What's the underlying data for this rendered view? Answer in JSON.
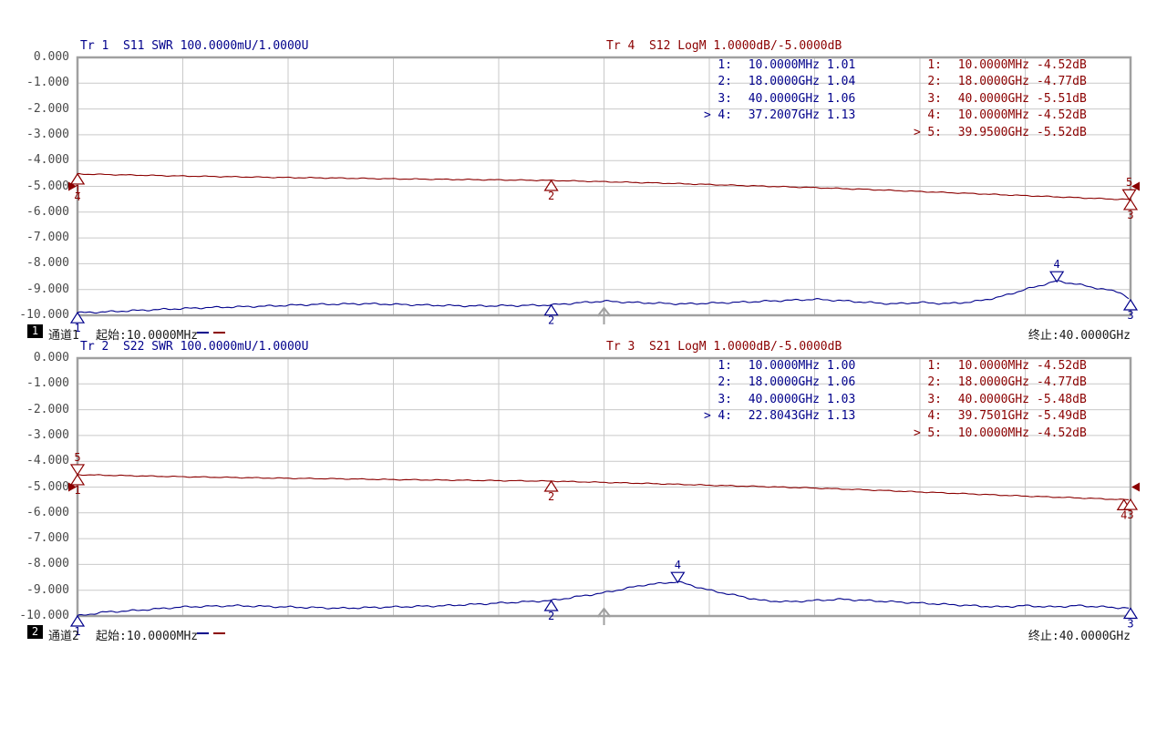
{
  "colors": {
    "trace_blue": "#00008b",
    "trace_red": "#8b0000",
    "grid_line": "#c9c9c9",
    "grid_border": "#a0a0a0",
    "tick_text": "#4a4a4a",
    "label_text": "#1a1a1a",
    "channel_box_bg": "#000000",
    "channel_box_fg": "#ffffff",
    "sweep_arrow": "#a0a0a0"
  },
  "axis": {
    "y_tick_labels": [
      "0.000",
      "-1.000",
      "-2.000",
      "-3.000",
      "-4.000",
      "-5.000",
      "-6.000",
      "-7.000",
      "-8.000",
      "-9.000",
      "-10.000"
    ],
    "x_divisions": 10,
    "y_divisions": 10
  },
  "channels": [
    {
      "channel_number": "1",
      "channel_name": "通道1",
      "start_label": "起始:10.0000MHz",
      "stop_label": "终止:40.0000GHz",
      "swr_header": "Tr 1  S11 SWR 100.0000mU/1.0000U",
      "logm_header": "Tr 4  S12 LogM 1.0000dB/-5.0000dB",
      "swr_marker_table": [
        {
          "active": "",
          "index": "1:",
          "stimulus": "10.0000MHz",
          "value": "1.01"
        },
        {
          "active": "",
          "index": "2:",
          "stimulus": "18.0000GHz",
          "value": "1.04"
        },
        {
          "active": "",
          "index": "3:",
          "stimulus": "40.0000GHz",
          "value": "1.06"
        },
        {
          "active": ">",
          "index": "4:",
          "stimulus": "37.2007GHz",
          "value": "1.13"
        }
      ],
      "logm_marker_table": [
        {
          "active": "",
          "index": "1:",
          "stimulus": "10.0000MHz",
          "value": "-4.52dB"
        },
        {
          "active": "",
          "index": "2:",
          "stimulus": "18.0000GHz",
          "value": "-4.77dB"
        },
        {
          "active": "",
          "index": "3:",
          "stimulus": "40.0000GHz",
          "value": "-5.51dB"
        },
        {
          "active": "",
          "index": "4:",
          "stimulus": "10.0000MHz",
          "value": "-4.52dB"
        },
        {
          "active": ">",
          "index": "5:",
          "stimulus": "39.9500GHz",
          "value": "-5.52dB"
        }
      ]
    },
    {
      "channel_number": "2",
      "channel_name": "通道2",
      "start_label": "起始:10.0000MHz",
      "stop_label": "终止:40.0000GHz",
      "swr_header": "Tr 2  S22 SWR 100.0000mU/1.0000U",
      "logm_header": "Tr 3  S21 LogM 1.0000dB/-5.0000dB",
      "swr_marker_table": [
        {
          "active": "",
          "index": "1:",
          "stimulus": "10.0000MHz",
          "value": "1.00"
        },
        {
          "active": "",
          "index": "2:",
          "stimulus": "18.0000GHz",
          "value": "1.06"
        },
        {
          "active": "",
          "index": "3:",
          "stimulus": "40.0000GHz",
          "value": "1.03"
        },
        {
          "active": ">",
          "index": "4:",
          "stimulus": "22.8043GHz",
          "value": "1.13"
        }
      ],
      "logm_marker_table": [
        {
          "active": "",
          "index": "1:",
          "stimulus": "10.0000MHz",
          "value": "-4.52dB"
        },
        {
          "active": "",
          "index": "2:",
          "stimulus": "18.0000GHz",
          "value": "-4.77dB"
        },
        {
          "active": "",
          "index": "3:",
          "stimulus": "40.0000GHz",
          "value": "-5.48dB"
        },
        {
          "active": "",
          "index": "4:",
          "stimulus": "39.7501GHz",
          "value": "-5.49dB"
        },
        {
          "active": ">",
          "index": "5:",
          "stimulus": "10.0000MHz",
          "value": "-4.52dB"
        }
      ]
    }
  ],
  "chart_data": [
    {
      "type": "line",
      "title": "通道1",
      "x_range_ghz": [
        0.01,
        40
      ],
      "x_start_label": "起始:10.0000MHz",
      "x_stop_label": "终止:40.0000GHz",
      "y_axis_db": {
        "min": -10,
        "max": 0,
        "step": 1
      },
      "grid": true,
      "sweep_arrow_frac": 0.5,
      "series": [
        {
          "name": "Tr 1 S11 SWR",
          "format": "SWR",
          "scale_per_div": "100.0000mU",
          "ref_value": "1.0000U",
          "color_key": "trace_blue",
          "anchors_ghz_swr": [
            [
              0.01,
              1.01
            ],
            [
              1,
              1.013
            ],
            [
              3,
              1.022
            ],
            [
              5,
              1.03
            ],
            [
              7,
              1.035
            ],
            [
              9,
              1.042
            ],
            [
              11,
              1.045
            ],
            [
              13,
              1.04
            ],
            [
              15,
              1.036
            ],
            [
              17,
              1.038
            ],
            [
              18,
              1.04
            ],
            [
              19,
              1.048
            ],
            [
              20,
              1.055
            ],
            [
              21,
              1.05
            ],
            [
              23,
              1.044
            ],
            [
              25,
              1.05
            ],
            [
              27,
              1.058
            ],
            [
              28,
              1.062
            ],
            [
              29,
              1.057
            ],
            [
              30,
              1.05
            ],
            [
              31,
              1.044
            ],
            [
              32,
              1.05
            ],
            [
              33,
              1.045
            ],
            [
              34,
              1.052
            ],
            [
              35,
              1.07
            ],
            [
              36,
              1.1
            ],
            [
              37.2,
              1.133
            ],
            [
              38,
              1.12
            ],
            [
              39,
              1.1
            ],
            [
              39.6,
              1.09
            ],
            [
              40,
              1.06
            ]
          ],
          "markers": [
            {
              "label": "1",
              "ghz": 0.01,
              "swr": 1.01,
              "dir": "up"
            },
            {
              "label": "2",
              "ghz": 18,
              "swr": 1.04,
              "dir": "up"
            },
            {
              "label": "3",
              "ghz": 40,
              "swr": 1.06,
              "dir": "up"
            },
            {
              "label": "4",
              "ghz": 37.2007,
              "swr": 1.13,
              "dir": "down"
            }
          ],
          "ref_arrows": false
        },
        {
          "name": "Tr 4 S12 LogM",
          "format": "LogM",
          "scale_per_div": "1.0000dB",
          "ref_value": "-5.0000dB",
          "color_key": "trace_red",
          "anchors_ghz_db": [
            [
              0.01,
              -4.52
            ],
            [
              2,
              -4.56
            ],
            [
              4,
              -4.6
            ],
            [
              6,
              -4.63
            ],
            [
              8,
              -4.66
            ],
            [
              10,
              -4.68
            ],
            [
              12,
              -4.71
            ],
            [
              14,
              -4.73
            ],
            [
              16,
              -4.75
            ],
            [
              18,
              -4.77
            ],
            [
              20,
              -4.82
            ],
            [
              22,
              -4.87
            ],
            [
              24,
              -4.93
            ],
            [
              26,
              -4.99
            ],
            [
              28,
              -5.05
            ],
            [
              30,
              -5.12
            ],
            [
              32,
              -5.2
            ],
            [
              34,
              -5.28
            ],
            [
              36,
              -5.36
            ],
            [
              38,
              -5.44
            ],
            [
              39.5,
              -5.5
            ],
            [
              40,
              -5.51
            ]
          ],
          "markers": [
            {
              "label": "1",
              "ghz": 0.01,
              "db": -4.52,
              "dir": "up"
            },
            {
              "label": "4",
              "ghz": 0.01,
              "db": -4.52,
              "dir": "up",
              "label_dy": 8
            },
            {
              "label": "2",
              "ghz": 18,
              "db": -4.77,
              "dir": "up"
            },
            {
              "label": "3",
              "ghz": 40,
              "db": -5.51,
              "dir": "up"
            },
            {
              "label": "5",
              "ghz": 39.95,
              "db": -5.52,
              "dir": "down"
            }
          ],
          "ref_arrows": true,
          "ref_db": -5
        }
      ]
    },
    {
      "type": "line",
      "title": "通道2",
      "x_range_ghz": [
        0.01,
        40
      ],
      "x_start_label": "起始:10.0000MHz",
      "x_stop_label": "终止:40.0000GHz",
      "y_axis_db": {
        "min": -10,
        "max": 0,
        "step": 1
      },
      "grid": true,
      "sweep_arrow_frac": 0.5,
      "series": [
        {
          "name": "Tr 2 S22 SWR",
          "format": "SWR",
          "scale_per_div": "100.0000mU",
          "ref_value": "1.0000U",
          "color_key": "trace_blue",
          "anchors_ghz_swr": [
            [
              0.01,
              1.0
            ],
            [
              1,
              1.015
            ],
            [
              2,
              1.02
            ],
            [
              4,
              1.035
            ],
            [
              6,
              1.04
            ],
            [
              8,
              1.035
            ],
            [
              10,
              1.03
            ],
            [
              12,
              1.035
            ],
            [
              14,
              1.04
            ],
            [
              16,
              1.05
            ],
            [
              18,
              1.06
            ],
            [
              20,
              1.09
            ],
            [
              21.5,
              1.12
            ],
            [
              22.8,
              1.133
            ],
            [
              24,
              1.1
            ],
            [
              26,
              1.06
            ],
            [
              27,
              1.055
            ],
            [
              28,
              1.06
            ],
            [
              29,
              1.065
            ],
            [
              30,
              1.06
            ],
            [
              32,
              1.05
            ],
            [
              34,
              1.04
            ],
            [
              35,
              1.035
            ],
            [
              36,
              1.04
            ],
            [
              37,
              1.035
            ],
            [
              38,
              1.04
            ],
            [
              39,
              1.035
            ],
            [
              40,
              1.03
            ]
          ],
          "markers": [
            {
              "label": "1",
              "ghz": 0.01,
              "swr": 1.0,
              "dir": "up"
            },
            {
              "label": "2",
              "ghz": 18,
              "swr": 1.06,
              "dir": "up"
            },
            {
              "label": "3",
              "ghz": 40,
              "swr": 1.03,
              "dir": "up"
            },
            {
              "label": "4",
              "ghz": 22.8043,
              "swr": 1.13,
              "dir": "down"
            }
          ],
          "ref_arrows": false
        },
        {
          "name": "Tr 3 S21 LogM",
          "format": "LogM",
          "scale_per_div": "1.0000dB",
          "ref_value": "-5.0000dB",
          "color_key": "trace_red",
          "anchors_ghz_db": [
            [
              0.01,
              -4.52
            ],
            [
              2,
              -4.56
            ],
            [
              4,
              -4.6
            ],
            [
              6,
              -4.63
            ],
            [
              8,
              -4.66
            ],
            [
              10,
              -4.68
            ],
            [
              12,
              -4.71
            ],
            [
              14,
              -4.73
            ],
            [
              16,
              -4.75
            ],
            [
              18,
              -4.77
            ],
            [
              20,
              -4.82
            ],
            [
              22,
              -4.87
            ],
            [
              24,
              -4.93
            ],
            [
              26,
              -4.98
            ],
            [
              28,
              -5.04
            ],
            [
              30,
              -5.11
            ],
            [
              32,
              -5.19
            ],
            [
              34,
              -5.27
            ],
            [
              36,
              -5.35
            ],
            [
              38,
              -5.42
            ],
            [
              39.75,
              -5.49
            ],
            [
              40,
              -5.48
            ]
          ],
          "markers": [
            {
              "label": "5",
              "ghz": 0.01,
              "db": -4.52,
              "dir": "down"
            },
            {
              "label": "1",
              "ghz": 0.01,
              "db": -4.52,
              "dir": "up"
            },
            {
              "label": "2",
              "ghz": 18,
              "db": -4.77,
              "dir": "up"
            },
            {
              "label": "4",
              "ghz": 39.7501,
              "db": -5.49,
              "dir": "up"
            },
            {
              "label": "3",
              "ghz": 40,
              "db": -5.48,
              "dir": "up"
            }
          ],
          "ref_arrows": true,
          "ref_db": -5
        }
      ]
    }
  ]
}
